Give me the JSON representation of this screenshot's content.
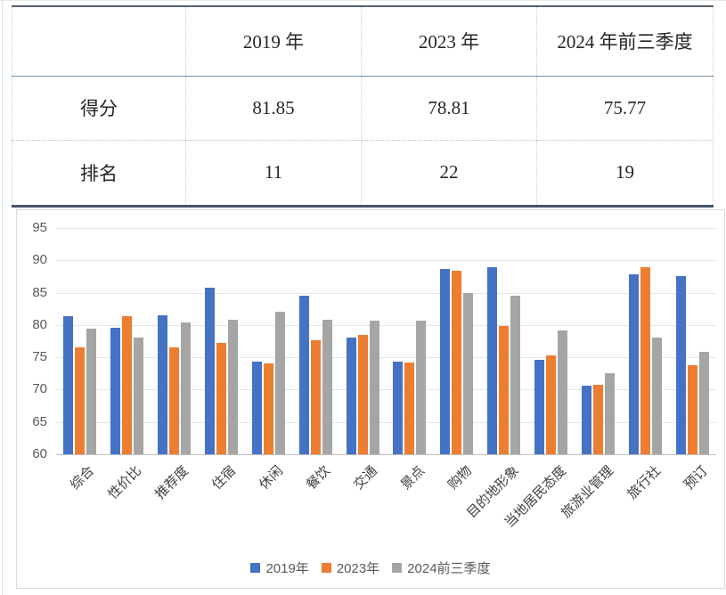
{
  "table": {
    "header": [
      "",
      "2019 年",
      "2023 年",
      "2024 年前三季度"
    ],
    "rows": [
      {
        "label": "得分",
        "values": [
          "81.85",
          "78.81",
          "75.77"
        ]
      },
      {
        "label": "排名",
        "values": [
          "11",
          "22",
          "19"
        ]
      }
    ]
  },
  "chart_data": {
    "type": "bar",
    "categories": [
      "综合",
      "性价比",
      "推荐度",
      "住宿",
      "休闲",
      "餐饮",
      "交通",
      "景点",
      "购物",
      "目的地形象",
      "当地居民态度",
      "旅游业管理",
      "旅行社",
      "预订"
    ],
    "series": [
      {
        "name": "2019年",
        "color": "#4472C4",
        "values": [
          81.3,
          79.6,
          81.5,
          85.8,
          74.4,
          84.5,
          78.0,
          74.3,
          88.6,
          89.0,
          74.6,
          70.6,
          87.8,
          87.6
        ]
      },
      {
        "name": "2023年",
        "color": "#ED7D31",
        "values": [
          76.6,
          81.3,
          76.6,
          77.2,
          74.1,
          77.6,
          78.4,
          74.2,
          88.4,
          79.8,
          75.3,
          70.8,
          89.0,
          73.8
        ]
      },
      {
        "name": "2024前三季度",
        "color": "#A5A5A5",
        "values": [
          79.5,
          78.0,
          80.4,
          80.8,
          82.0,
          80.8,
          80.7,
          80.7,
          85.0,
          84.5,
          79.2,
          72.6,
          78.0,
          75.8
        ]
      }
    ],
    "title": "",
    "xlabel": "",
    "ylabel": "",
    "ylim": [
      60,
      95
    ],
    "yticks": [
      60,
      65,
      70,
      75,
      80,
      85,
      90,
      95
    ],
    "grid": true,
    "legend_position": "bottom"
  },
  "colors": {
    "grid": "#e6e6e6",
    "axis": "#bfbfbf",
    "axis_text": "#595959",
    "table_border_dark": "#44546A"
  }
}
